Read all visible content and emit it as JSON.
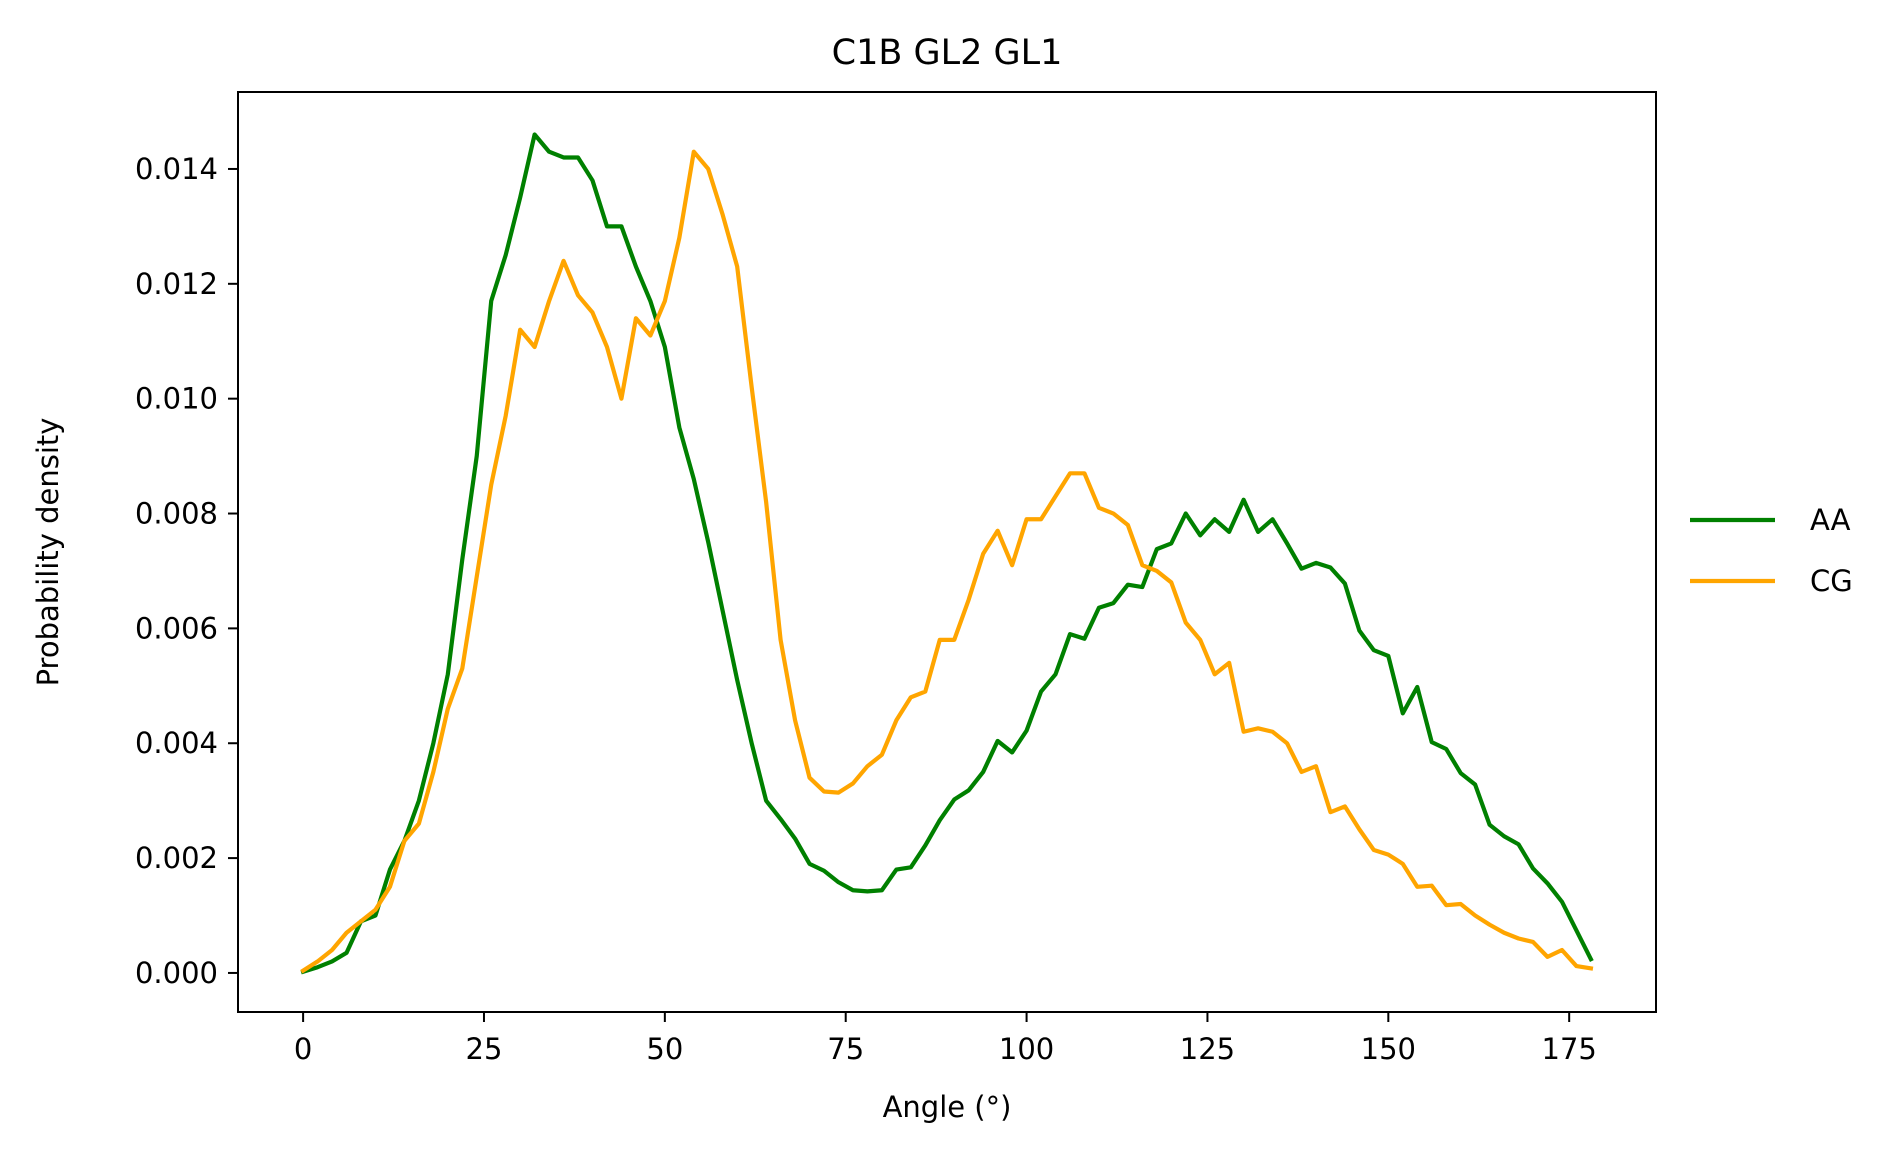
{
  "chart_data": {
    "type": "line",
    "title": "C1B GL2 GL1",
    "xlabel": "Angle (°)",
    "ylabel": "Probability density",
    "xlim": [
      -9,
      187
    ],
    "ylim": [
      -0.00068,
      0.01534
    ],
    "xticks": [
      0,
      25,
      50,
      75,
      100,
      125,
      150,
      175
    ],
    "xtick_labels": [
      "0",
      "25",
      "50",
      "75",
      "100",
      "125",
      "150",
      "175"
    ],
    "yticks": [
      0.0,
      0.002,
      0.004,
      0.006,
      0.008,
      0.01,
      0.012,
      0.014
    ],
    "ytick_labels": [
      "0.000",
      "0.002",
      "0.004",
      "0.006",
      "0.008",
      "0.010",
      "0.012",
      "0.014"
    ],
    "grid": false,
    "legend_position": "outside-right",
    "x": [
      0,
      2,
      4,
      6,
      8,
      10,
      12,
      14,
      16,
      18,
      20,
      22,
      24,
      26,
      28,
      30,
      32,
      34,
      36,
      38,
      40,
      42,
      44,
      46,
      48,
      50,
      52,
      54,
      56,
      58,
      60,
      62,
      64,
      66,
      68,
      70,
      72,
      74,
      76,
      78,
      80,
      82,
      84,
      86,
      88,
      90,
      92,
      94,
      96,
      98,
      100,
      102,
      104,
      106,
      108,
      110,
      112,
      114,
      116,
      118,
      120,
      122,
      124,
      126,
      128,
      130,
      132,
      134,
      136,
      138,
      140,
      142,
      144,
      146,
      148,
      150,
      152,
      154,
      156,
      158,
      160,
      162,
      164,
      166,
      168,
      170,
      172,
      174,
      176,
      178
    ],
    "series": [
      {
        "name": "AA",
        "color": "#008000",
        "values": [
          2e-05,
          0.0001,
          0.0002,
          0.00035,
          0.0009,
          0.001,
          0.0018,
          0.0023,
          0.003,
          0.004,
          0.0052,
          0.0072,
          0.009,
          0.0117,
          0.0125,
          0.0135,
          0.0146,
          0.0143,
          0.0142,
          0.0142,
          0.0138,
          0.013,
          0.013,
          0.0123,
          0.0117,
          0.0109,
          0.0095,
          0.0086,
          0.0075,
          0.0063,
          0.0051,
          0.004,
          0.003,
          0.00268,
          0.00234,
          0.0019,
          0.00178,
          0.00158,
          0.00144,
          0.00142,
          0.00144,
          0.0018,
          0.00184,
          0.00222,
          0.00266,
          0.00302,
          0.00318,
          0.0035,
          0.00404,
          0.00384,
          0.00422,
          0.0049,
          0.0052,
          0.0059,
          0.00582,
          0.00636,
          0.00644,
          0.00676,
          0.00672,
          0.00738,
          0.00748,
          0.008,
          0.00762,
          0.0079,
          0.00768,
          0.00824,
          0.00768,
          0.0079,
          0.00748,
          0.00704,
          0.00714,
          0.00706,
          0.00678,
          0.00596,
          0.00562,
          0.00552,
          0.00452,
          0.00498,
          0.00402,
          0.0039,
          0.00348,
          0.00328,
          0.00258,
          0.00238,
          0.00224,
          0.00182,
          0.00156,
          0.00124,
          0.00074,
          0.00024
        ]
      },
      {
        "name": "CG",
        "color": "#ffa500",
        "values": [
          4e-05,
          0.0002,
          0.0004,
          0.0007,
          0.0009,
          0.0011,
          0.0015,
          0.0023,
          0.0026,
          0.0035,
          0.0046,
          0.0053,
          0.0069,
          0.0085,
          0.0097,
          0.0112,
          0.0109,
          0.0117,
          0.0124,
          0.0118,
          0.0115,
          0.0109,
          0.01,
          0.0114,
          0.0111,
          0.0117,
          0.0128,
          0.0143,
          0.014,
          0.0132,
          0.0123,
          0.0102,
          0.0082,
          0.0058,
          0.0044,
          0.0034,
          0.00316,
          0.00314,
          0.0033,
          0.0036,
          0.0038,
          0.0044,
          0.0048,
          0.0049,
          0.0058,
          0.0058,
          0.0065,
          0.0073,
          0.0077,
          0.0071,
          0.0079,
          0.0079,
          0.0083,
          0.0087,
          0.0087,
          0.0081,
          0.008,
          0.0078,
          0.0071,
          0.007,
          0.0068,
          0.0061,
          0.0058,
          0.0052,
          0.0054,
          0.0042,
          0.00426,
          0.0042,
          0.004,
          0.0035,
          0.0036,
          0.0028,
          0.0029,
          0.0025,
          0.00214,
          0.00206,
          0.0019,
          0.0015,
          0.00152,
          0.00118,
          0.0012,
          0.001,
          0.00084,
          0.0007,
          0.0006,
          0.00054,
          0.00028,
          0.0004,
          0.00012,
          8e-05
        ]
      }
    ]
  }
}
